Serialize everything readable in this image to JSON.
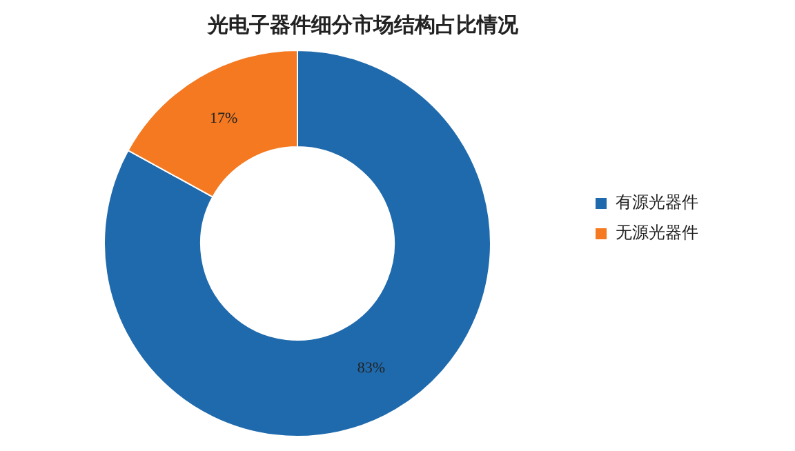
{
  "chart_data": {
    "type": "donut",
    "title": "光电子器件细分市场结构占比情况",
    "categories": [
      "有源光器件",
      "无源光器件"
    ],
    "values": [
      83,
      17
    ],
    "colors": [
      "#1f6aad",
      "#f47920"
    ],
    "value_labels": [
      "83%",
      "17%"
    ],
    "legend": "right"
  }
}
